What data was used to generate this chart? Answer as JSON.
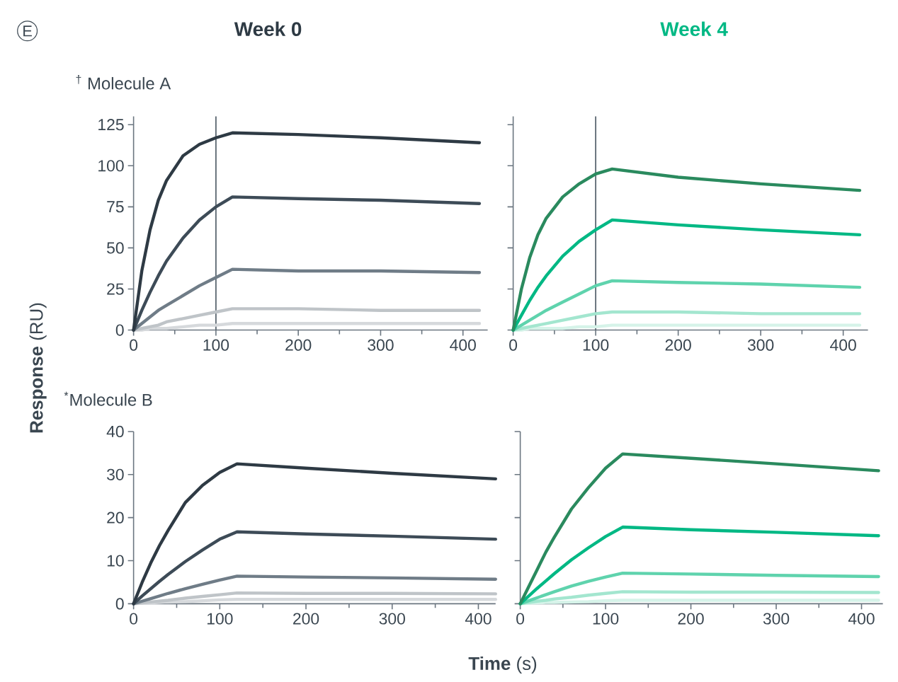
{
  "chart_data": [
    {
      "type": "line",
      "title": "Week 0",
      "subtitle": "$^{†}$ Molecule A",
      "ylabel": "**Response** (RU)",
      "annotations": [
        "E"
      ],
      "xlim": [
        0,
        430
      ],
      "ylim": [
        0,
        130
      ],
      "xticks": [
        0,
        100,
        200,
        300,
        400
      ],
      "yticks": [
        0,
        25,
        50,
        75,
        100,
        125
      ],
      "ref_lines": [
        {
          "axis": "x",
          "value": 100,
          "color": "#5a6670"
        }
      ],
      "series": [
        {
          "color": "#2e3a44",
          "x": [
            0,
            10,
            20,
            30,
            40,
            60,
            80,
            100,
            120,
            200,
            300,
            420
          ],
          "values": [
            0,
            36,
            61,
            79,
            91,
            106,
            113,
            117,
            120,
            119,
            117,
            114
          ]
        },
        {
          "color": "#3d4b57",
          "x": [
            0,
            10,
            20,
            30,
            40,
            60,
            80,
            100,
            120,
            200,
            300,
            420
          ],
          "values": [
            0,
            12,
            23,
            33,
            42,
            56,
            67,
            75,
            81,
            80,
            79,
            77
          ]
        },
        {
          "color": "#6f7c87",
          "x": [
            0,
            10,
            20,
            30,
            40,
            60,
            80,
            100,
            120,
            200,
            300,
            420
          ],
          "values": [
            0,
            4,
            8,
            12,
            15,
            21,
            27,
            32,
            37,
            36,
            36,
            35
          ]
        },
        {
          "color": "#bfc4c8",
          "x": [
            0,
            10,
            20,
            30,
            40,
            60,
            80,
            100,
            120,
            200,
            300,
            420
          ],
          "values": [
            0,
            1,
            2,
            3,
            5,
            7,
            9,
            11,
            13,
            13,
            12,
            12
          ]
        },
        {
          "color": "#d6d9dc",
          "x": [
            0,
            10,
            20,
            30,
            40,
            60,
            80,
            100,
            120,
            200,
            300,
            420
          ],
          "values": [
            0,
            0,
            1,
            1,
            1,
            2,
            3,
            3,
            4,
            4,
            4,
            4
          ]
        }
      ]
    },
    {
      "type": "line",
      "title": "Week 4",
      "tick_labels": "x",
      "xlim": [
        0,
        430
      ],
      "ylim": [
        0,
        130
      ],
      "xticks": [
        0,
        100,
        200,
        300,
        400
      ],
      "yticks": [
        0,
        25,
        50,
        75,
        100,
        125
      ],
      "ref_lines": [
        {
          "axis": "x",
          "value": 100,
          "color": "#5a6670"
        }
      ],
      "series": [
        {
          "color": "#2a8a5e",
          "x": [
            0,
            10,
            20,
            30,
            40,
            60,
            80,
            100,
            120,
            200,
            300,
            420
          ],
          "values": [
            0,
            25,
            44,
            58,
            68,
            81,
            89,
            95,
            98,
            93,
            89,
            85
          ]
        },
        {
          "color": "#00b884",
          "x": [
            0,
            10,
            20,
            30,
            40,
            60,
            80,
            100,
            120,
            200,
            300,
            420
          ],
          "values": [
            0,
            9,
            18,
            26,
            33,
            45,
            54,
            61,
            67,
            64,
            61,
            58
          ]
        },
        {
          "color": "#5fd3ad",
          "x": [
            0,
            10,
            20,
            30,
            40,
            60,
            80,
            100,
            120,
            200,
            300,
            420
          ],
          "values": [
            0,
            3,
            6,
            9,
            12,
            17,
            22,
            27,
            30,
            29,
            28,
            26
          ]
        },
        {
          "color": "#a3e6cf",
          "x": [
            0,
            10,
            20,
            30,
            40,
            60,
            80,
            100,
            120,
            200,
            300,
            420
          ],
          "values": [
            0,
            1,
            2,
            3,
            4,
            6,
            8,
            10,
            11,
            11,
            10,
            10
          ]
        },
        {
          "color": "#d6f3e9",
          "x": [
            0,
            10,
            20,
            30,
            40,
            60,
            80,
            100,
            120,
            200,
            300,
            420
          ],
          "values": [
            0,
            0,
            1,
            1,
            1,
            1,
            2,
            2,
            3,
            3,
            3,
            3
          ]
        }
      ]
    },
    {
      "type": "line",
      "subtitle": "$^{*}$Molecule B",
      "xlabel": "**Time** (s)",
      "xlim": [
        0,
        420
      ],
      "ylim": [
        0,
        40
      ],
      "xticks": [
        0,
        100,
        200,
        300,
        400
      ],
      "yticks": [
        0,
        10,
        20,
        30,
        40
      ],
      "series": [
        {
          "color": "#2e3a44",
          "x": [
            0,
            10,
            20,
            30,
            40,
            60,
            80,
            100,
            120,
            200,
            300,
            420
          ],
          "values": [
            0,
            5,
            9.5,
            13.5,
            17,
            23.5,
            27.5,
            30.5,
            32.5,
            31.5,
            30.3,
            29
          ]
        },
        {
          "color": "#3d4b57",
          "x": [
            0,
            10,
            20,
            30,
            40,
            60,
            80,
            100,
            120,
            200,
            300,
            420
          ],
          "values": [
            0,
            1.8,
            3.5,
            5.2,
            6.8,
            9.8,
            12.5,
            15,
            16.7,
            16.2,
            15.7,
            15
          ]
        },
        {
          "color": "#6f7c87",
          "x": [
            0,
            10,
            20,
            30,
            40,
            60,
            80,
            100,
            120,
            200,
            300,
            420
          ],
          "values": [
            0,
            0.6,
            1.2,
            1.8,
            2.4,
            3.5,
            4.5,
            5.5,
            6.4,
            6.2,
            6,
            5.7
          ]
        },
        {
          "color": "#bfc4c8",
          "x": [
            0,
            10,
            20,
            30,
            40,
            60,
            80,
            100,
            120,
            200,
            300,
            420
          ],
          "values": [
            0,
            0.2,
            0.4,
            0.6,
            0.8,
            1.3,
            1.7,
            2.1,
            2.5,
            2.4,
            2.4,
            2.3
          ]
        },
        {
          "color": "#d6d9dc",
          "x": [
            0,
            10,
            20,
            30,
            40,
            60,
            80,
            100,
            120,
            200,
            300,
            420
          ],
          "values": [
            0,
            0.1,
            0.2,
            0.3,
            0.4,
            0.5,
            0.7,
            0.9,
            1,
            1,
            1,
            1
          ]
        }
      ]
    },
    {
      "type": "line",
      "tick_labels": "x",
      "xlim": [
        0,
        425
      ],
      "ylim": [
        0,
        40
      ],
      "xticks": [
        0,
        100,
        200,
        300,
        400
      ],
      "yticks": [
        0,
        10,
        20,
        30,
        40
      ],
      "series": [
        {
          "color": "#2a8a5e",
          "x": [
            0,
            10,
            20,
            30,
            40,
            60,
            80,
            100,
            120,
            200,
            300,
            420
          ],
          "values": [
            0,
            4,
            8,
            12,
            15.5,
            22,
            27,
            31.5,
            34.8,
            33.8,
            32.5,
            30.9
          ]
        },
        {
          "color": "#00b884",
          "x": [
            0,
            10,
            20,
            30,
            40,
            60,
            80,
            100,
            120,
            200,
            300,
            420
          ],
          "values": [
            0,
            1.8,
            3.6,
            5.3,
            7,
            10.2,
            13,
            15.6,
            17.8,
            17.2,
            16.6,
            15.8
          ]
        },
        {
          "color": "#5fd3ad",
          "x": [
            0,
            10,
            20,
            30,
            40,
            60,
            80,
            100,
            120,
            200,
            300,
            420
          ],
          "values": [
            0,
            0.7,
            1.4,
            2.1,
            2.8,
            4.1,
            5.2,
            6.2,
            7.1,
            6.9,
            6.6,
            6.3
          ]
        },
        {
          "color": "#a3e6cf",
          "x": [
            0,
            10,
            20,
            30,
            40,
            60,
            80,
            100,
            120,
            200,
            300,
            420
          ],
          "values": [
            0,
            0.3,
            0.6,
            0.8,
            1.1,
            1.5,
            2,
            2.4,
            2.8,
            2.7,
            2.7,
            2.6
          ]
        },
        {
          "color": "#d6f3e9",
          "x": [
            0,
            10,
            20,
            30,
            40,
            60,
            80,
            100,
            120,
            200,
            300,
            420
          ],
          "values": [
            0,
            0.1,
            0.2,
            0.3,
            0.3,
            0.4,
            0.5,
            0.7,
            0.8,
            0.8,
            0.8,
            0.8
          ]
        }
      ]
    }
  ]
}
